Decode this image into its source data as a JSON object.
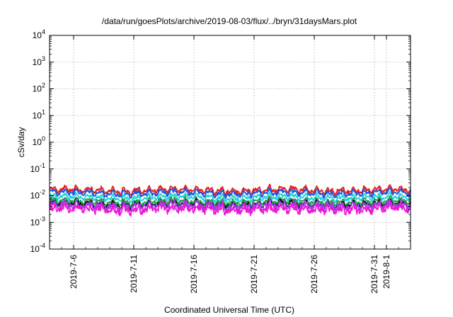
{
  "chart_data": {
    "type": "line",
    "title": "/data/run/goesPlots/archive/2019-08-03/flux/../bryn/31daysMars.plot",
    "xlabel": "Coordinated Universal Time (UTC)",
    "ylabel": "cSv/day",
    "y_scale": "log",
    "ylim": [
      0.0001,
      10000
    ],
    "y_ticks": [
      {
        "base": "10",
        "exp": "-4"
      },
      {
        "base": "10",
        "exp": "-3"
      },
      {
        "base": "10",
        "exp": "-2"
      },
      {
        "base": "10",
        "exp": "-1"
      },
      {
        "base": "10",
        "exp": "0"
      },
      {
        "base": "10",
        "exp": "1"
      },
      {
        "base": "10",
        "exp": "2"
      },
      {
        "base": "10",
        "exp": "3"
      },
      {
        "base": "10",
        "exp": "4"
      }
    ],
    "xlim": [
      "2019-07-04",
      "2019-08-03"
    ],
    "x_ticks": [
      "2019-7-6",
      "2019-7-11",
      "2019-7-16",
      "2019-7-21",
      "2019-7-26",
      "2019-7-31",
      "2019-8-1"
    ],
    "x_tick_days": [
      2,
      7,
      12,
      17,
      22,
      27,
      28
    ],
    "grid": true,
    "series": [
      {
        "color": "#e8201a",
        "base": 0.016
      },
      {
        "color": "#1b55e0",
        "base": 0.0125
      },
      {
        "color": "#22d4dc",
        "base": 0.0085
      },
      {
        "color": "#20a050",
        "base": 0.006
      },
      {
        "color": "#111111",
        "base": 0.0048
      },
      {
        "color": "#a040e0",
        "base": 0.0042
      },
      {
        "color": "#f014d8",
        "base": 0.0031
      }
    ]
  }
}
